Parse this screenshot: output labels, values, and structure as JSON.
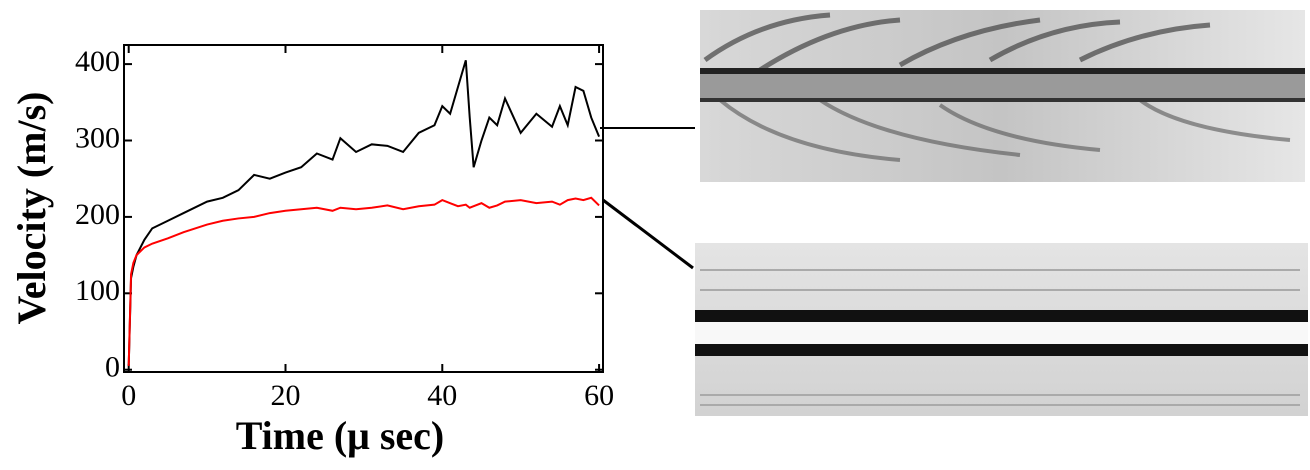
{
  "chart_data": {
    "type": "line",
    "xlabel": "Time (μ sec)",
    "ylabel": "Velocity (m/s)",
    "x": [
      0,
      0.3,
      0.6,
      1,
      2,
      3,
      5,
      7,
      10,
      12,
      14,
      16,
      18,
      20,
      22,
      24,
      26,
      27,
      29,
      31,
      33,
      35,
      37,
      39,
      40,
      41,
      42,
      43,
      43.5,
      44,
      45,
      46,
      47,
      48,
      50,
      52,
      54,
      55,
      56,
      57,
      58,
      59,
      60
    ],
    "series": [
      {
        "color": "#000000",
        "values": [
          5,
          120,
          135,
          150,
          170,
          185,
          195,
          205,
          220,
          225,
          235,
          255,
          250,
          258,
          265,
          283,
          275,
          303,
          285,
          295,
          293,
          285,
          310,
          320,
          345,
          335,
          370,
          405,
          330,
          265,
          300,
          330,
          320,
          355,
          310,
          335,
          318,
          345,
          320,
          370,
          365,
          330,
          305
        ]
      },
      {
        "color": "#ff0000",
        "values": [
          5,
          125,
          140,
          150,
          160,
          165,
          172,
          180,
          190,
          195,
          198,
          200,
          205,
          208,
          210,
          212,
          208,
          212,
          210,
          212,
          215,
          210,
          214,
          216,
          222,
          218,
          214,
          216,
          212,
          214,
          218,
          212,
          215,
          220,
          222,
          218,
          220,
          216,
          222,
          224,
          222,
          225,
          215
        ]
      }
    ],
    "xlim": [
      -0.6,
      60.5
    ],
    "ylim": [
      -3,
      425
    ],
    "xticks": [
      0,
      20,
      40,
      60
    ],
    "yticks": [
      0,
      100,
      200,
      300,
      400
    ]
  }
}
